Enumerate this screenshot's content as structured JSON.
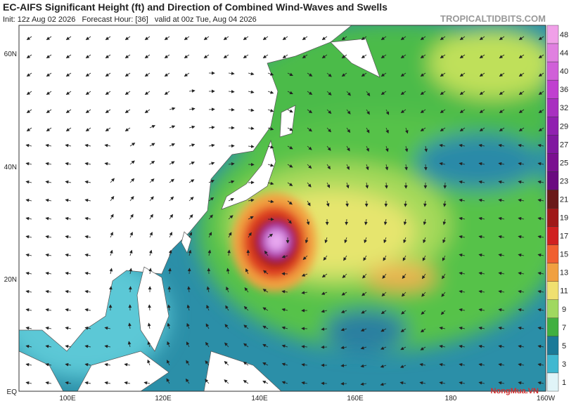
{
  "header": {
    "title": "EC-AIFS Significant Height (ft) and Direction of Combined Wind-Waves and Swells",
    "subtitle": "Init: 12z Aug 02 2026   Forecast Hour: [36]   valid at 00z Tue, Aug 04 2026",
    "source": "TROPICALTIDBITS.COM"
  },
  "map": {
    "lat_labels": [
      "60N",
      "40N",
      "20N",
      "EQ"
    ],
    "lon_labels": [
      "100E",
      "120E",
      "140E",
      "160E",
      "180",
      "160W"
    ]
  },
  "colorbar": {
    "labels": [
      48,
      44,
      40,
      36,
      32,
      29,
      27,
      25,
      23,
      21,
      19,
      17,
      15,
      13,
      11,
      9,
      7,
      5,
      3,
      1
    ]
  },
  "watermark": "NongMua.VN"
}
